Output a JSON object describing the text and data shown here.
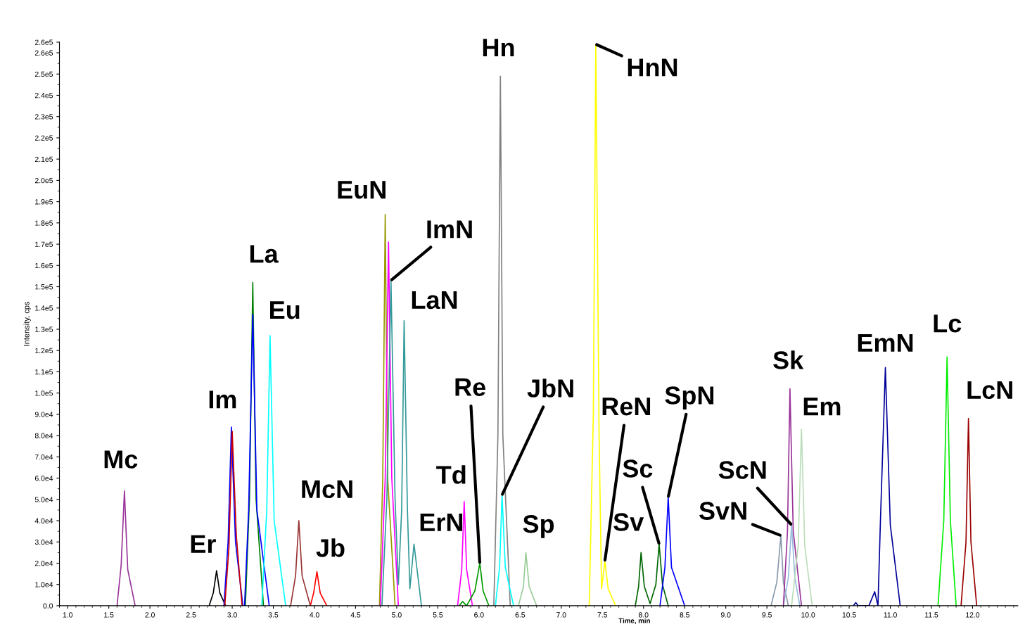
{
  "chart_data": {
    "type": "line",
    "xlabel": "Time, min",
    "ylabel": "Intensity, cps",
    "xlim": [
      0.9,
      12.55
    ],
    "ylim": [
      0,
      265000
    ],
    "xticks": [
      {
        "value": 1.0,
        "label": "1.0"
      },
      1.5,
      {
        "value": 2.0,
        "label": "2.0"
      },
      2.5,
      {
        "value": 3.0,
        "label": "3.0"
      },
      3.5,
      {
        "value": 4.0,
        "label": "4.0"
      },
      4.5,
      {
        "value": 5.0,
        "label": "5.0"
      },
      5.5,
      {
        "value": 6.0,
        "label": "6.0"
      },
      6.5,
      {
        "value": 7.0,
        "label": "7.0"
      },
      7.5,
      {
        "value": 8.0,
        "label": "8.0"
      },
      8.5,
      {
        "value": 9.0,
        "label": "9.0"
      },
      9.5,
      {
        "value": 10.0,
        "label": "10.0"
      },
      10.5,
      {
        "value": 11.0,
        "label": "11.0"
      },
      11.5,
      {
        "value": 12.0,
        "label": "12.0"
      }
    ],
    "yticks": [
      {
        "value": 0,
        "label": "0.0"
      },
      {
        "value": 10000,
        "label": "1.0e4"
      },
      {
        "value": 20000,
        "label": "2.0e4"
      },
      {
        "value": 30000,
        "label": "3.0e4"
      },
      {
        "value": 40000,
        "label": "4.0e4"
      },
      {
        "value": 50000,
        "label": "5.0e4"
      },
      {
        "value": 60000,
        "label": "6.0e4"
      },
      {
        "value": 70000,
        "label": "7.0e4"
      },
      {
        "value": 80000,
        "label": "8.0e4"
      },
      {
        "value": 90000,
        "label": "9.0e4"
      },
      {
        "value": 100000,
        "label": "1.0e5"
      },
      {
        "value": 110000,
        "label": "1.1e5"
      },
      {
        "value": 120000,
        "label": "1.2e5"
      },
      {
        "value": 130000,
        "label": "1.3e5"
      },
      {
        "value": 140000,
        "label": "1.4e5"
      },
      {
        "value": 150000,
        "label": "1.5e5"
      },
      {
        "value": 160000,
        "label": "1.6e5"
      },
      {
        "value": 170000,
        "label": "1.7e5"
      },
      {
        "value": 180000,
        "label": "1.8e5"
      },
      {
        "value": 190000,
        "label": "1.9e5"
      },
      {
        "value": 200000,
        "label": "2.0e5"
      },
      {
        "value": 210000,
        "label": "2.1e5"
      },
      {
        "value": 220000,
        "label": "2.2e5"
      },
      {
        "value": 230000,
        "label": "2.3e5"
      },
      {
        "value": 240000,
        "label": "2.4e5"
      },
      {
        "value": 250000,
        "label": "2.5e5"
      },
      {
        "value": 260000,
        "label": "2.6e5"
      },
      {
        "value": 265000,
        "label": "2.6e5"
      }
    ],
    "grid": false,
    "legend": false,
    "marker": "none",
    "line_style": "solid",
    "series": [
      {
        "color": "#993399",
        "x": [
          1.6,
          1.65,
          1.69,
          1.73,
          1.82
        ],
        "values": [
          0,
          19000,
          54000,
          17000,
          0
        ]
      },
      {
        "color": "#000000",
        "x": [
          2.72,
          2.77,
          2.81,
          2.85,
          2.92
        ],
        "values": [
          0,
          6000,
          16500,
          6000,
          0
        ]
      },
      {
        "color": "#0000ff",
        "x": [
          2.9,
          2.95,
          2.99,
          3.04,
          3.13
        ],
        "values": [
          0,
          30000,
          84000,
          30000,
          0
        ]
      },
      {
        "color": "#cc0000",
        "x": [
          2.91,
          2.96,
          3.0,
          3.05,
          3.12
        ],
        "values": [
          0,
          27000,
          82000,
          33000,
          0
        ]
      },
      {
        "color": "#008000",
        "x": [
          3.16,
          3.21,
          3.25,
          3.29,
          3.38
        ],
        "values": [
          0,
          50000,
          152000,
          50000,
          0
        ]
      },
      {
        "color": "#0000ff",
        "x": [
          3.15,
          3.2,
          3.25,
          3.3,
          3.45
        ],
        "values": [
          0,
          45000,
          137000,
          45000,
          0
        ]
      },
      {
        "color": "#00ffff",
        "x": [
          3.36,
          3.42,
          3.46,
          3.51,
          3.65
        ],
        "values": [
          0,
          45000,
          127000,
          40000,
          0
        ]
      },
      {
        "color": "#993333",
        "x": [
          3.71,
          3.77,
          3.81,
          3.85,
          3.95
        ],
        "values": [
          0,
          14000,
          40000,
          14000,
          0
        ]
      },
      {
        "color": "#ff0000",
        "x": [
          3.95,
          3.99,
          4.03,
          4.07,
          4.15
        ],
        "values": [
          0,
          6000,
          16000,
          6000,
          0
        ]
      },
      {
        "color": "#999900",
        "x": [
          4.79,
          4.83,
          4.86,
          4.89,
          4.98
        ],
        "values": [
          0,
          60000,
          184000,
          60000,
          0
        ]
      },
      {
        "color": "#ff00ff",
        "x": [
          4.8,
          4.86,
          4.9,
          4.94,
          5.02
        ],
        "values": [
          0,
          60000,
          171000,
          60000,
          0
        ]
      },
      {
        "color": "#339999",
        "x": [
          4.82,
          4.88,
          4.93,
          4.98,
          5.02,
          5.06,
          5.09,
          5.13,
          5.16,
          5.21,
          5.3
        ],
        "values": [
          0,
          50000,
          153000,
          50000,
          10000,
          45000,
          134000,
          45000,
          8000,
          29000,
          0
        ]
      },
      {
        "color": "#ff00ff",
        "x": [
          5.74,
          5.79,
          5.82,
          5.85,
          5.92
        ],
        "values": [
          0,
          17000,
          49000,
          17000,
          0
        ]
      },
      {
        "color": "#009900",
        "x": [
          5.76,
          5.8,
          5.85,
          5.95,
          6.01,
          6.05,
          6.12
        ],
        "values": [
          0,
          2000,
          0,
          7000,
          20000,
          7000,
          0
        ]
      },
      {
        "color": "#808080",
        "x": [
          6.18,
          6.23,
          6.26,
          6.29,
          6.38
        ],
        "values": [
          0,
          80000,
          249000,
          80000,
          0
        ]
      },
      {
        "color": "#00ffff",
        "x": [
          6.2,
          6.25,
          6.28,
          6.32,
          6.42
        ],
        "values": [
          0,
          18000,
          52000,
          18000,
          0
        ]
      },
      {
        "color": "#99cc99",
        "x": [
          6.48,
          6.54,
          6.57,
          6.61,
          6.7
        ],
        "values": [
          0,
          9000,
          25000,
          9000,
          0
        ]
      },
      {
        "color": "#ffff00",
        "x": [
          7.34,
          7.39,
          7.42,
          7.46,
          7.49,
          7.53,
          7.57,
          7.66
        ],
        "values": [
          0,
          90000,
          264000,
          80000,
          8000,
          21000,
          8000,
          0
        ]
      },
      {
        "color": "#006600",
        "x": [
          7.9,
          7.94,
          7.97,
          8.01,
          8.08,
          8.15,
          8.19,
          8.23,
          8.3
        ],
        "values": [
          0,
          9000,
          25000,
          9000,
          1000,
          10000,
          29000,
          10000,
          0
        ]
      },
      {
        "color": "#0000ff",
        "x": [
          8.2,
          8.26,
          8.3,
          8.34,
          8.5
        ],
        "values": [
          0,
          18000,
          51000,
          18000,
          0
        ]
      },
      {
        "color": "#8899aa",
        "x": [
          9.55,
          9.62,
          9.67,
          9.7,
          9.76
        ],
        "values": [
          0,
          11000,
          33000,
          11000,
          0
        ]
      },
      {
        "color": "#99bbdd",
        "x": [
          9.7,
          9.76,
          9.8,
          9.84,
          9.9
        ],
        "values": [
          0,
          13000,
          38000,
          13000,
          0
        ]
      },
      {
        "color": "#993399",
        "x": [
          9.7,
          9.75,
          9.78,
          9.82,
          9.92
        ],
        "values": [
          0,
          35000,
          102000,
          35000,
          0
        ]
      },
      {
        "color": "#bbddbb",
        "x": [
          9.8,
          9.88,
          9.92,
          9.96,
          10.05
        ],
        "values": [
          0,
          28000,
          83000,
          28000,
          0
        ]
      },
      {
        "color": "#000099",
        "x": [
          10.55,
          10.58,
          10.61,
          10.74,
          10.81,
          10.85,
          10.88,
          10.94,
          11.0,
          11.12
        ],
        "values": [
          0,
          1500,
          0,
          0,
          6600,
          0,
          40000,
          112000,
          38000,
          0
        ]
      },
      {
        "color": "#00ee00",
        "x": [
          11.58,
          11.65,
          11.69,
          11.73,
          11.8
        ],
        "values": [
          0,
          40000,
          117000,
          40000,
          0
        ]
      },
      {
        "color": "#990000",
        "x": [
          11.86,
          11.92,
          11.95,
          11.98,
          12.05
        ],
        "values": [
          0,
          30000,
          88000,
          30000,
          0
        ]
      }
    ],
    "annotations": [
      {
        "text": "Mc",
        "x": 1.69,
        "y": 54000
      },
      {
        "text": "Er",
        "x": 2.81,
        "y": 16500
      },
      {
        "text": "Im",
        "x": 2.99,
        "y": 84000
      },
      {
        "text": "La",
        "x": 3.25,
        "y": 152000
      },
      {
        "text": "Eu",
        "x": 3.46,
        "y": 127000
      },
      {
        "text": "McN",
        "x": 3.81,
        "y": 40000
      },
      {
        "text": "Jb",
        "x": 4.03,
        "y": 16000
      },
      {
        "text": "EuN",
        "x": 4.86,
        "y": 184000
      },
      {
        "text": "ImN",
        "x": 4.93,
        "y": 153000
      },
      {
        "text": "LaN",
        "x": 5.09,
        "y": 134000
      },
      {
        "text": "ErN",
        "x": 5.21,
        "y": 29000
      },
      {
        "text": "Td",
        "x": 5.82,
        "y": 49000
      },
      {
        "text": "Re",
        "x": 6.01,
        "y": 20000
      },
      {
        "text": "Hn",
        "x": 6.26,
        "y": 249000
      },
      {
        "text": "JbN",
        "x": 6.28,
        "y": 52000
      },
      {
        "text": "Sp",
        "x": 6.57,
        "y": 25000
      },
      {
        "text": "HnN",
        "x": 7.42,
        "y": 264000
      },
      {
        "text": "ReN",
        "x": 7.53,
        "y": 21000
      },
      {
        "text": "Sv",
        "x": 7.97,
        "y": 25000
      },
      {
        "text": "Sc",
        "x": 8.19,
        "y": 29000
      },
      {
        "text": "SpN",
        "x": 8.3,
        "y": 51000
      },
      {
        "text": "SvN",
        "x": 9.67,
        "y": 33000
      },
      {
        "text": "ScN",
        "x": 9.8,
        "y": 38000
      },
      {
        "text": "Sk",
        "x": 9.78,
        "y": 102000
      },
      {
        "text": "Em",
        "x": 9.92,
        "y": 83000
      },
      {
        "text": "EmN",
        "x": 10.94,
        "y": 112000
      },
      {
        "text": "Lc",
        "x": 11.69,
        "y": 117000
      },
      {
        "text": "LcN",
        "x": 11.95,
        "y": 88000
      }
    ]
  }
}
